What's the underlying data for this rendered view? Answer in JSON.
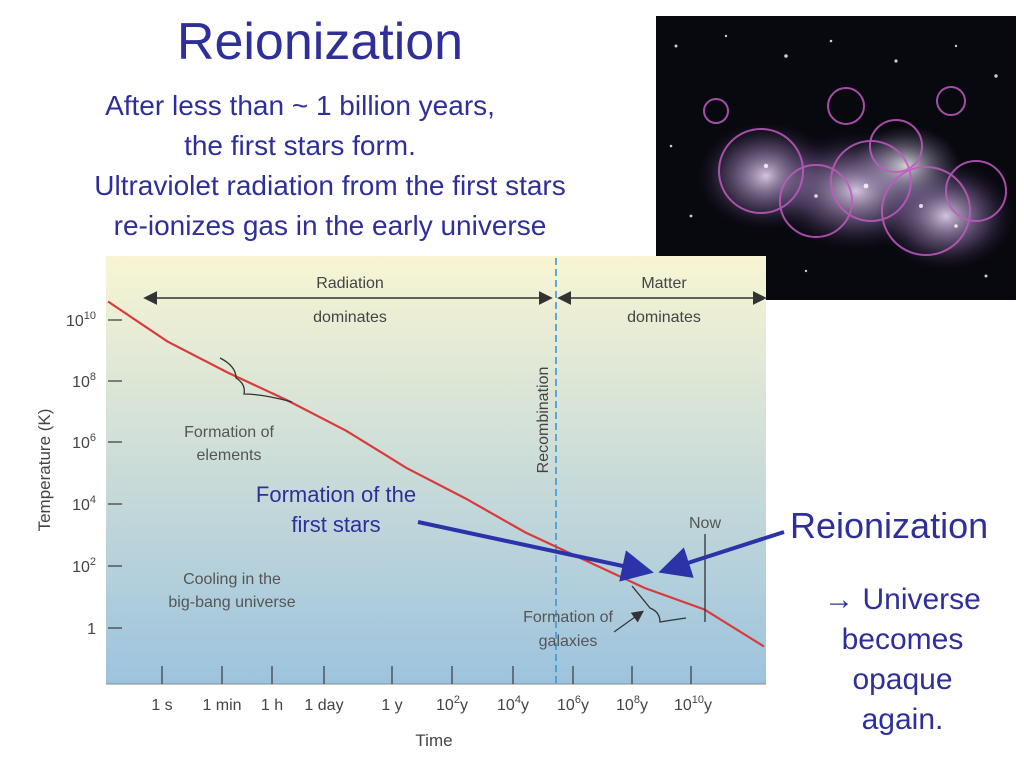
{
  "slide": {
    "title": "Reionization",
    "subtitle_lines": [
      "After less than ~ 1 billion years,",
      "the first stars form."
    ],
    "subtitle2_lines": [
      "Ultraviolet radiation from the first stars",
      "re-ionizes gas in the early universe"
    ],
    "callout_reionization": "Reionization",
    "callout_result_lines": [
      "→ Universe",
      "becomes",
      "opaque",
      "again."
    ]
  },
  "colors": {
    "text_blue": "#2f2f9a",
    "line_red": "#d93a3a",
    "arrow_blue": "#2b33a8",
    "divider_blue": "#3f97d1",
    "chart_top": "#f8f5d3",
    "chart_bottom": "#9cc3de"
  },
  "chart_data": {
    "type": "line",
    "title": "",
    "xlabel": "Time",
    "ylabel": "Temperature (K)",
    "y_scale": "log",
    "y_ticks": [
      {
        "base": "10",
        "exp": "10"
      },
      {
        "base": "10",
        "exp": "8"
      },
      {
        "base": "10",
        "exp": "6"
      },
      {
        "base": "10",
        "exp": "4"
      },
      {
        "base": "10",
        "exp": "2"
      },
      {
        "base": "1",
        "exp": ""
      }
    ],
    "x_ticks": [
      {
        "base": "1 s",
        "exp": ""
      },
      {
        "base": "1 min",
        "exp": ""
      },
      {
        "base": "1 h",
        "exp": ""
      },
      {
        "base": "1 day",
        "exp": ""
      },
      {
        "base": "1 y",
        "exp": ""
      },
      {
        "base": "10",
        "exp": "2",
        "unit": "y"
      },
      {
        "base": "10",
        "exp": "4",
        "unit": "y"
      },
      {
        "base": "10",
        "exp": "6",
        "unit": "y"
      },
      {
        "base": "10",
        "exp": "8",
        "unit": "y"
      },
      {
        "base": "10",
        "exp": "10",
        "unit": "y"
      }
    ],
    "series": [
      {
        "values": [
          10.6,
          9.3,
          8.3,
          7.4,
          6.4,
          5.2,
          4.2,
          3.1,
          2.2,
          1.3,
          0.6,
          -0.6
        ]
      }
    ],
    "eras": [
      {
        "label_lines": [
          "Radiation",
          "dominates"
        ]
      },
      {
        "label_lines": [
          "Matter",
          "dominates"
        ]
      }
    ],
    "recombination_label": "Recombination",
    "annotations": {
      "elements_lines": [
        "Formation of",
        "elements"
      ],
      "first_stars_lines": [
        "Formation of the",
        "first stars"
      ],
      "now": "Now",
      "galaxies_lines": [
        "Formation of",
        "galaxies"
      ],
      "cooling_lines": [
        "Cooling in the",
        "big-bang universe"
      ]
    }
  }
}
